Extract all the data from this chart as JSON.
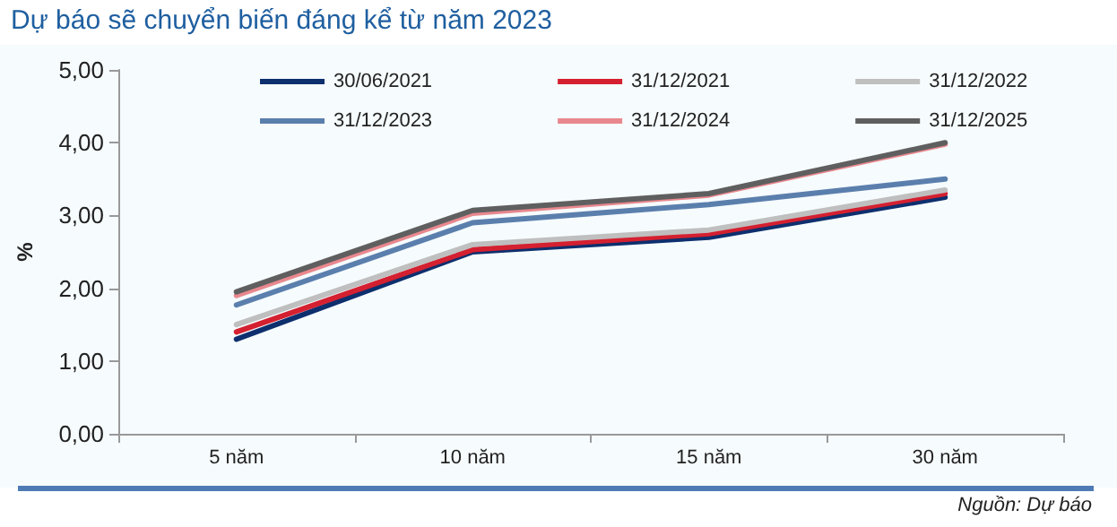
{
  "chart_data": {
    "type": "line",
    "title": "Dự báo sẽ chuyển biến đáng kể từ năm 2023",
    "ylabel": "%",
    "categories": [
      "5 năm",
      "10 năm",
      "15 năm",
      "30 năm"
    ],
    "series": [
      {
        "name": "30/06/2021",
        "color": "#0d2f6e",
        "values": [
          1.3,
          2.5,
          2.7,
          3.25
        ]
      },
      {
        "name": "31/12/2021",
        "color": "#d42030",
        "values": [
          1.4,
          2.53,
          2.75,
          3.3
        ]
      },
      {
        "name": "31/12/2022",
        "color": "#bfbfbf",
        "values": [
          1.5,
          2.6,
          2.8,
          3.35
        ]
      },
      {
        "name": "31/12/2023",
        "color": "#5b7fad",
        "values": [
          1.77,
          2.9,
          3.15,
          3.5
        ]
      },
      {
        "name": "31/12/2024",
        "color": "#e8888e",
        "values": [
          1.9,
          3.03,
          3.28,
          3.98
        ]
      },
      {
        "name": "31/12/2025",
        "color": "#5f5f60",
        "values": [
          1.95,
          3.07,
          3.3,
          4.0
        ]
      }
    ],
    "ylim": [
      0,
      5
    ],
    "yticks": [
      {
        "value": 0,
        "label": "0,00"
      },
      {
        "value": 1,
        "label": "1,00"
      },
      {
        "value": 2,
        "label": "2,00"
      },
      {
        "value": 3,
        "label": "3,00"
      },
      {
        "value": 4,
        "label": "4,00"
      },
      {
        "value": 5,
        "label": "5,00"
      }
    ],
    "grid": false,
    "legend": "top",
    "marker": "none",
    "line_style": "solid",
    "annotations": [
      "Nguồn: Dự báo"
    ]
  }
}
